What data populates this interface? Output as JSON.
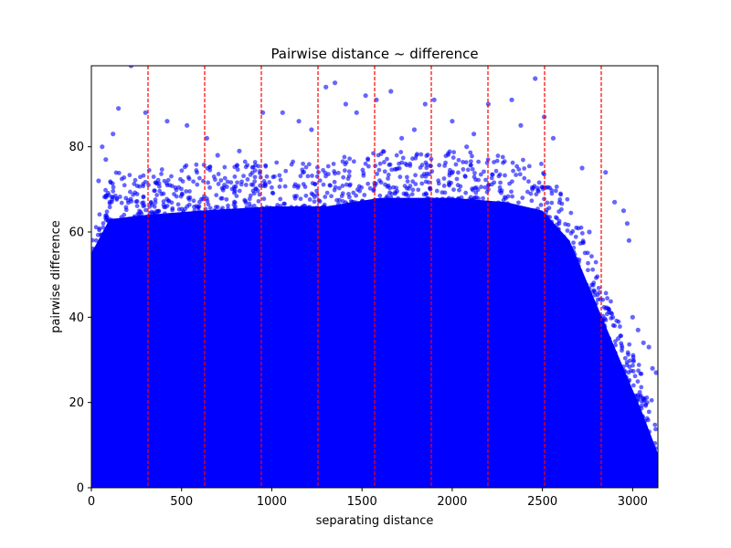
{
  "chart_data": {
    "type": "scatter",
    "title": "Pairwise distance ~ difference",
    "xlabel": "separating distance",
    "ylabel": "pairwise difference",
    "xlim": [
      0,
      3140
    ],
    "ylim": [
      0,
      99
    ],
    "xticks": [
      0,
      500,
      1000,
      1500,
      2000,
      2500,
      3000
    ],
    "yticks": [
      0,
      20,
      40,
      60,
      80
    ],
    "grid": false,
    "legend": "none",
    "point_color": "#0000ff",
    "point_alpha": 0.6,
    "vlines": [
      314,
      628,
      942,
      1256,
      1570,
      1884,
      2198,
      2512,
      2826
    ],
    "vline_color": "#ff0000",
    "dense_region_upper_envelope": [
      [
        0,
        55
      ],
      [
        100,
        63
      ],
      [
        300,
        64
      ],
      [
        600,
        65
      ],
      [
        1000,
        66
      ],
      [
        1300,
        66
      ],
      [
        1600,
        68
      ],
      [
        2000,
        68
      ],
      [
        2300,
        67
      ],
      [
        2500,
        65
      ],
      [
        2650,
        58
      ],
      [
        2750,
        48
      ],
      [
        2850,
        38
      ],
      [
        2950,
        28
      ],
      [
        3050,
        18
      ],
      [
        3140,
        8
      ]
    ],
    "outlier_points": [
      [
        220,
        99
      ],
      [
        300,
        88
      ],
      [
        150,
        89
      ],
      [
        420,
        86
      ],
      [
        530,
        85
      ],
      [
        640,
        82
      ],
      [
        700,
        78
      ],
      [
        820,
        79
      ],
      [
        950,
        88
      ],
      [
        1060,
        88
      ],
      [
        1150,
        86
      ],
      [
        1220,
        84
      ],
      [
        1300,
        94
      ],
      [
        1350,
        95
      ],
      [
        1410,
        90
      ],
      [
        1470,
        88
      ],
      [
        1520,
        92
      ],
      [
        1580,
        91
      ],
      [
        1660,
        93
      ],
      [
        1720,
        82
      ],
      [
        1790,
        84
      ],
      [
        1850,
        90
      ],
      [
        1900,
        91
      ],
      [
        2000,
        86
      ],
      [
        2080,
        80
      ],
      [
        2120,
        83
      ],
      [
        2200,
        90
      ],
      [
        2330,
        91
      ],
      [
        2380,
        85
      ],
      [
        2460,
        96
      ],
      [
        2510,
        87
      ],
      [
        2560,
        82
      ],
      [
        2720,
        75
      ],
      [
        2850,
        74
      ],
      [
        2900,
        67
      ],
      [
        2950,
        65
      ],
      [
        2970,
        62
      ],
      [
        2980,
        58
      ],
      [
        3000,
        40
      ],
      [
        3030,
        37
      ],
      [
        3060,
        34
      ],
      [
        3090,
        33
      ],
      [
        3110,
        28
      ],
      [
        3130,
        27
      ],
      [
        2780,
        46
      ],
      [
        2800,
        38
      ],
      [
        2880,
        41
      ],
      [
        2920,
        35
      ],
      [
        2700,
        52
      ],
      [
        2760,
        60
      ],
      [
        80,
        77
      ],
      [
        120,
        83
      ],
      [
        40,
        72
      ],
      [
        60,
        80
      ]
    ]
  }
}
